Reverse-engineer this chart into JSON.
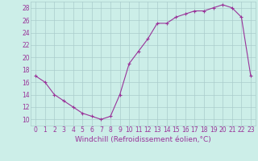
{
  "x": [
    0,
    1,
    2,
    3,
    4,
    5,
    6,
    7,
    8,
    9,
    10,
    11,
    12,
    13,
    14,
    15,
    16,
    17,
    18,
    19,
    20,
    21,
    22,
    23
  ],
  "y": [
    17,
    16,
    14,
    13,
    12,
    11,
    10.5,
    10,
    10.5,
    14,
    19,
    21,
    23,
    25.5,
    25.5,
    26.5,
    27,
    27.5,
    27.5,
    28,
    28.5,
    28,
    26.5,
    17
  ],
  "line_color": "#993399",
  "marker": "+",
  "bg_color": "#cceee8",
  "grid_color": "#aacccc",
  "xlabel": "Windchill (Refroidissement éolien,°C)",
  "xlabel_color": "#993399",
  "xlim": [
    -0.5,
    23.5
  ],
  "ylim": [
    9,
    29
  ],
  "yticks": [
    10,
    12,
    14,
    16,
    18,
    20,
    22,
    24,
    26,
    28
  ],
  "xticks": [
    0,
    1,
    2,
    3,
    4,
    5,
    6,
    7,
    8,
    9,
    10,
    11,
    12,
    13,
    14,
    15,
    16,
    17,
    18,
    19,
    20,
    21,
    22,
    23
  ],
  "tick_label_color": "#993399",
  "tick_label_size": 5.5,
  "xlabel_size": 6.5,
  "linewidth": 0.8,
  "markersize": 3.5,
  "markeredgewidth": 0.8
}
